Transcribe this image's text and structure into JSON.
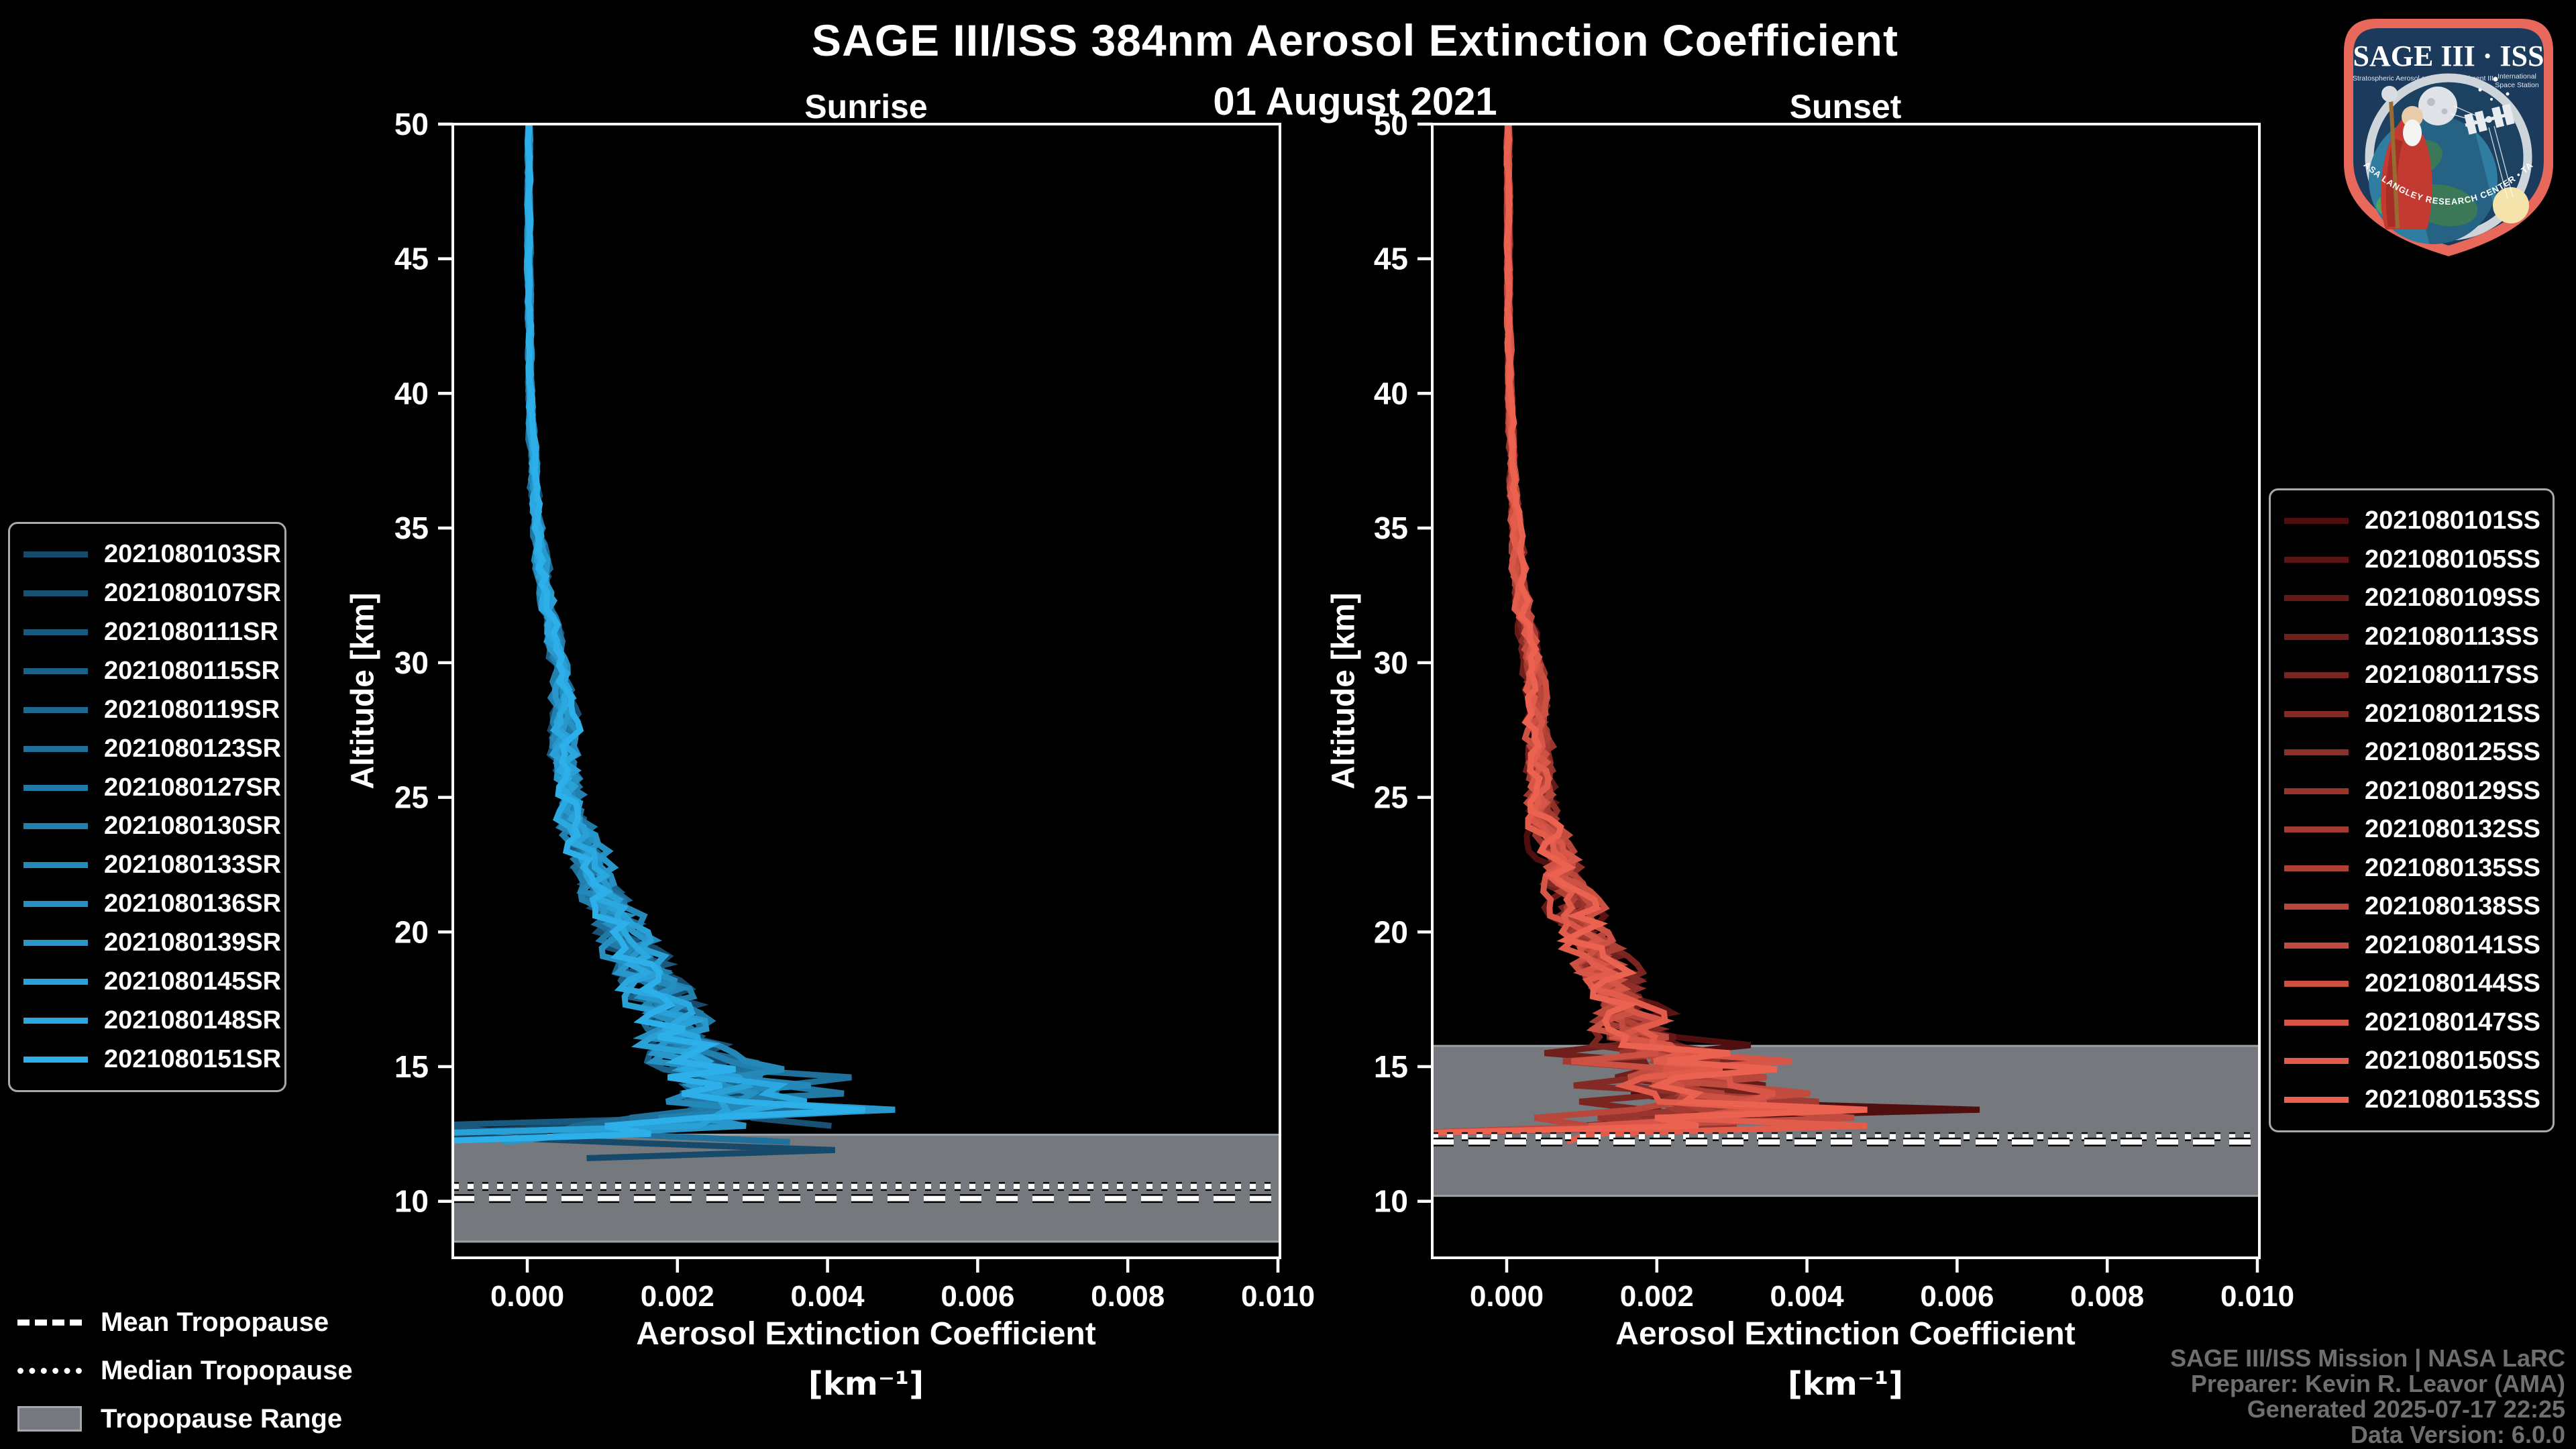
{
  "header": {
    "title": "SAGE III/ISS 384nm Aerosol Extinction Coefficient",
    "date": "01 August 2021"
  },
  "panels": [
    {
      "title": "Sunrise"
    },
    {
      "title": "Sunset"
    }
  ],
  "axes": {
    "ylabel": "Altitude [km]",
    "xlabel": "Aerosol Extinction Coefficient",
    "xunit": "[km⁻¹]",
    "yticks": [
      10,
      15,
      20,
      25,
      30,
      35,
      40,
      45,
      50
    ],
    "xtick_values": [
      0.0,
      0.002,
      0.004,
      0.006,
      0.008,
      0.01
    ],
    "xtick_labels": [
      "0.000",
      "0.002",
      "0.004",
      "0.006",
      "0.008",
      "0.010"
    ],
    "xlim": [
      -0.000992,
      0.010027
    ],
    "ylim": [
      7.9,
      50
    ]
  },
  "tropopause_legend": {
    "mean": "Mean Tropopause",
    "median": "Median Tropopause",
    "range": "Tropopause Range"
  },
  "attribution": {
    "line1": "SAGE III/ISS Mission | NASA LaRC",
    "line2": "Preparer: Kevin R. Leavor (AMA)",
    "line3": "Generated 2025-07-17 22:25",
    "line4": "Data Version: 6.0.0"
  },
  "logo": {
    "title": "SAGE III · ISS",
    "subtitle_left": "Stratospheric Aerosol and Gas Experiment III",
    "subtitle_right_1": "International",
    "subtitle_right_2": "Space Station",
    "ring_text": "BALL • NASA LANGLEY RESEARCH CENTER • TAS-I • ESA"
  },
  "colors": {
    "background": "#000000",
    "axis": "#ffffff",
    "band_fill": "#75787c",
    "band_edge": "#9aa0a5",
    "tropopause_line": "#ffffff",
    "attribution_text": "#6f6f6f"
  },
  "chart_data": [
    {
      "type": "line",
      "title": "Sunrise",
      "xlabel": "Aerosol Extinction Coefficient [km⁻¹]",
      "ylabel": "Altitude [km]",
      "xlim": [
        -0.000992,
        0.010027
      ],
      "ylim": [
        7.9,
        50
      ],
      "grid": false,
      "legend_position": "outside-left",
      "tropopause": {
        "mean_km": 10.1,
        "median_km": 10.55,
        "range_km": [
          8.5,
          12.47
        ]
      },
      "profile_km_step": 0.3,
      "chaos_below_km": 15.0,
      "chaos_amp": 0.0014,
      "base_profile": [
        [
          50,
          2e-05
        ],
        [
          45,
          2e-05
        ],
        [
          40,
          4e-05
        ],
        [
          36,
          0.0001
        ],
        [
          33,
          0.00022
        ],
        [
          30,
          0.00042
        ],
        [
          28,
          0.00048
        ],
        [
          26,
          0.00052
        ],
        [
          24,
          0.00065
        ],
        [
          22,
          0.0009
        ],
        [
          20,
          0.0013
        ],
        [
          18,
          0.00175
        ],
        [
          16,
          0.0022
        ],
        [
          15,
          0.0024
        ],
        [
          14,
          0.0027
        ],
        [
          13.4,
          0.0029
        ],
        [
          13,
          0.0021
        ],
        [
          12.5,
          0.0012
        ],
        [
          11.4,
          0.0007
        ]
      ],
      "series": [
        {
          "label": "2021080103SR",
          "color": "#16496A",
          "end_km": 11.5,
          "seed": 11,
          "spike": [
            0.0041,
            11.95
          ],
          "negs": [
            12.55
          ]
        },
        {
          "label": "2021080107SR",
          "color": "#185174",
          "end_km": 12.6,
          "seed": 23,
          "spike": null,
          "negs": []
        },
        {
          "label": "2021080111SR",
          "color": "#1A597E",
          "end_km": 12.3,
          "seed": 37,
          "spike": null,
          "negs": [
            12.9
          ]
        },
        {
          "label": "2021080115SR",
          "color": "#1B6188",
          "end_km": 12.8,
          "seed": 41,
          "spike": [
            0.0032,
            13.55
          ],
          "negs": []
        },
        {
          "label": "2021080119SR",
          "color": "#1D6991",
          "end_km": 12.45,
          "seed": 53,
          "spike": null,
          "negs": []
        },
        {
          "label": "2021080123SR",
          "color": "#1F719B",
          "end_km": 12.15,
          "seed": 67,
          "spike": [
            0.0035,
            12.1
          ],
          "negs": []
        },
        {
          "label": "2021080127SR",
          "color": "#2179A5",
          "end_km": 12.7,
          "seed": 71,
          "spike": null,
          "negs": []
        },
        {
          "label": "2021080130SR",
          "color": "#2280AF",
          "end_km": 12.9,
          "seed": 83,
          "spike": null,
          "negs": []
        },
        {
          "label": "2021080133SR",
          "color": "#2488B9",
          "end_km": 12.4,
          "seed": 89,
          "spike": null,
          "negs": [
            12.45
          ]
        },
        {
          "label": "2021080136SR",
          "color": "#2690C3",
          "end_km": 12.55,
          "seed": 97,
          "spike": [
            0.003,
            14.05
          ],
          "negs": []
        },
        {
          "label": "2021080139SR",
          "color": "#2898CC",
          "end_km": 12.2,
          "seed": 13,
          "spike": [
            0.0049,
            13.45
          ],
          "negs": []
        },
        {
          "label": "2021080145SR",
          "color": "#29A0D6",
          "end_km": 12.35,
          "seed": 29,
          "spike": null,
          "negs": [
            12.6
          ]
        },
        {
          "label": "2021080148SR",
          "color": "#2BA8E0",
          "end_km": 13.0,
          "seed": 31,
          "spike": null,
          "negs": []
        },
        {
          "label": "2021080151SR",
          "color": "#2DB0EA",
          "end_km": 11.95,
          "seed": 47,
          "spike": [
            0.0045,
            13.5
          ],
          "negs": [
            12.0
          ]
        }
      ]
    },
    {
      "type": "line",
      "title": "Sunset",
      "xlabel": "Aerosol Extinction Coefficient [km⁻¹]",
      "ylabel": "Altitude [km]",
      "xlim": [
        -0.000992,
        0.010027
      ],
      "ylim": [
        7.9,
        50
      ],
      "grid": false,
      "legend_position": "outside-right",
      "tropopause": {
        "mean_km": 12.2,
        "median_km": 12.4,
        "range_km": [
          10.2,
          15.77
        ]
      },
      "profile_km_step": 0.3,
      "chaos_below_km": 15.9,
      "chaos_amp": 0.0013,
      "base_profile": [
        [
          50,
          2e-05
        ],
        [
          45,
          2e-05
        ],
        [
          40,
          4e-05
        ],
        [
          36,
          9e-05
        ],
        [
          33,
          0.00018
        ],
        [
          30,
          0.00034
        ],
        [
          28,
          0.0004
        ],
        [
          26,
          0.00044
        ],
        [
          24,
          0.00055
        ],
        [
          22,
          0.00075
        ],
        [
          20,
          0.00105
        ],
        [
          18,
          0.0014
        ],
        [
          16,
          0.0019
        ],
        [
          15,
          0.0022
        ],
        [
          14,
          0.0024
        ],
        [
          13.4,
          0.0026
        ],
        [
          13,
          0.0019
        ],
        [
          12.5,
          0.0011
        ],
        [
          12.1,
          0.0007
        ]
      ],
      "series": [
        {
          "label": "2021080101SS",
          "color": "#500F0F",
          "end_km": 12.9,
          "seed": 101,
          "spike": [
            0.0063,
            13.55
          ],
          "negs": []
        },
        {
          "label": "2021080105SS",
          "color": "#5A1413",
          "end_km": 13.2,
          "seed": 103,
          "spike": null,
          "negs": []
        },
        {
          "label": "2021080109SS",
          "color": "#651A18",
          "end_km": 12.6,
          "seed": 107,
          "spike": null,
          "negs": []
        },
        {
          "label": "2021080113SS",
          "color": "#6F1F1C",
          "end_km": 12.8,
          "seed": 109,
          "spike": [
            0.0034,
            14.15
          ],
          "negs": []
        },
        {
          "label": "2021080117SS",
          "color": "#7A2520",
          "end_km": 12.35,
          "seed": 113,
          "spike": null,
          "negs": [
            12.4
          ]
        },
        {
          "label": "2021080121SS",
          "color": "#842A25",
          "end_km": 12.9,
          "seed": 127,
          "spike": null,
          "negs": []
        },
        {
          "label": "2021080125SS",
          "color": "#8E3029",
          "end_km": 12.5,
          "seed": 131,
          "spike": null,
          "negs": []
        },
        {
          "label": "2021080129SS",
          "color": "#99352D",
          "end_km": 12.3,
          "seed": 137,
          "spike": null,
          "negs": [
            12.35
          ]
        },
        {
          "label": "2021080132SS",
          "color": "#A33B32",
          "end_km": 13.0,
          "seed": 139,
          "spike": null,
          "negs": []
        },
        {
          "label": "2021080135SS",
          "color": "#AE4036",
          "end_km": 12.7,
          "seed": 149,
          "spike": [
            0.0031,
            13.1
          ],
          "negs": []
        },
        {
          "label": "2021080138SS",
          "color": "#B8463A",
          "end_km": 12.4,
          "seed": 151,
          "spike": null,
          "negs": []
        },
        {
          "label": "2021080141SS",
          "color": "#C24B3F",
          "end_km": 12.25,
          "seed": 157,
          "spike": null,
          "negs": [
            12.3
          ]
        },
        {
          "label": "2021080144SS",
          "color": "#CD5143",
          "end_km": 12.6,
          "seed": 163,
          "spike": null,
          "negs": []
        },
        {
          "label": "2021080147SS",
          "color": "#D75647",
          "end_km": 12.45,
          "seed": 167,
          "spike": null,
          "negs": []
        },
        {
          "label": "2021080150SS",
          "color": "#E25C4C",
          "end_km": 12.2,
          "seed": 173,
          "spike": [
            0.0048,
            12.95
          ],
          "negs": []
        },
        {
          "label": "2021080153SS",
          "color": "#EC6250",
          "end_km": 12.3,
          "seed": 179,
          "spike": [
            0.0036,
            14.8
          ],
          "negs": [
            12.35
          ]
        }
      ]
    }
  ]
}
